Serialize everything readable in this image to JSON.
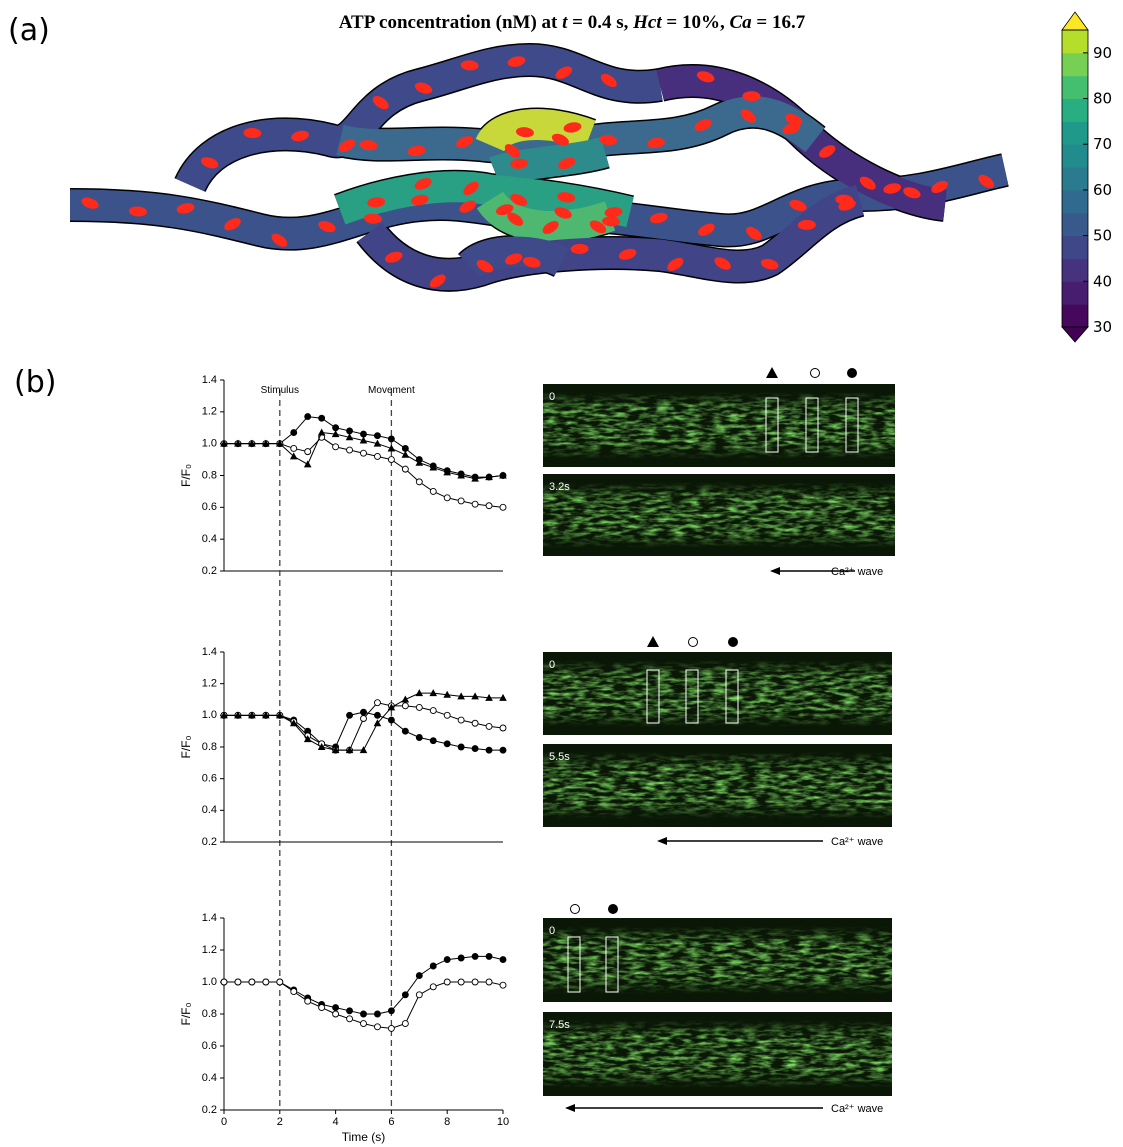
{
  "panel_labels": [
    "(a)",
    "(b)"
  ],
  "heatmap": {
    "title": [
      "ATP concentration (nM) at ",
      "t",
      " = 0.4 s, ",
      "Hct",
      " = 10%, ",
      "Ca",
      " = 16.7"
    ],
    "colorbar": {
      "lim": [
        30,
        95
      ],
      "ticks": [
        30,
        40,
        50,
        60,
        70,
        80,
        90
      ],
      "colors": [
        "#46085c",
        "#471d6f",
        "#46327e",
        "#3f4788",
        "#38598c",
        "#306a8e",
        "#2a7b8e",
        "#228b8d",
        "#1f9a8a",
        "#28ae80",
        "#44bf70",
        "#75d054",
        "#b5de2b"
      ],
      "extend_colors": [
        "#440154",
        "#fde725"
      ]
    }
  },
  "chart_data": [
    {
      "type": "line",
      "y_label": "F/F₀",
      "xlim": [
        0,
        10
      ],
      "ylim": [
        0.2,
        1.4
      ],
      "yticks": [
        0.2,
        0.4,
        0.6,
        0.8,
        {
          "value": 1,
          "label": "1.0"
        },
        1.2,
        1.4
      ],
      "markers": [
        {
          "x": 2,
          "label": "Stimulus"
        },
        {
          "x": 6,
          "label": "Movement"
        }
      ],
      "x": [
        0,
        0.5,
        1,
        1.5,
        2,
        2.5,
        3,
        3.5,
        4,
        4.5,
        5,
        5.5,
        6,
        6.5,
        7,
        7.5,
        8,
        8.5,
        9,
        9.5,
        10
      ],
      "series": [
        {
          "marker": "circle-filled",
          "values": [
            1,
            1,
            1,
            1,
            1,
            1.07,
            1.17,
            1.16,
            1.1,
            1.08,
            1.06,
            1.05,
            1.03,
            0.97,
            0.9,
            0.86,
            0.83,
            0.81,
            0.79,
            0.79,
            0.8
          ]
        },
        {
          "marker": "circle-open",
          "values": [
            1,
            1,
            1,
            1,
            1,
            0.97,
            0.95,
            1.04,
            0.98,
            0.96,
            0.94,
            0.92,
            0.9,
            0.84,
            0.76,
            0.7,
            0.66,
            0.64,
            0.62,
            0.61,
            0.6
          ]
        },
        {
          "marker": "triangle",
          "values": [
            1,
            1,
            1,
            1,
            1,
            0.92,
            0.87,
            1.07,
            1.06,
            1.04,
            1.02,
            1.0,
            0.97,
            0.93,
            0.88,
            0.85,
            0.82,
            0.8,
            0.78,
            0.79,
            0.8
          ]
        }
      ]
    },
    {
      "type": "line",
      "y_label": "F/F₀",
      "xlim": [
        0,
        10
      ],
      "ylim": [
        0.2,
        1.4
      ],
      "yticks": [
        0.2,
        0.4,
        0.6,
        0.8,
        {
          "value": 1,
          "label": "1.0"
        },
        1.2,
        1.4
      ],
      "x": [
        0,
        0.5,
        1,
        1.5,
        2,
        2.5,
        3,
        3.5,
        4,
        4.5,
        5,
        5.5,
        6,
        6.5,
        7,
        7.5,
        8,
        8.5,
        9,
        9.5,
        10
      ],
      "series": [
        {
          "marker": "circle-filled",
          "values": [
            1,
            1,
            1,
            1,
            1,
            0.97,
            0.9,
            0.82,
            0.8,
            1.0,
            1.02,
            1.0,
            0.97,
            0.9,
            0.86,
            0.84,
            0.82,
            0.8,
            0.79,
            0.78,
            0.78
          ]
        },
        {
          "marker": "circle-open",
          "values": [
            1,
            1,
            1,
            1,
            1,
            0.96,
            0.87,
            0.82,
            0.78,
            0.78,
            0.98,
            1.08,
            1.06,
            1.06,
            1.05,
            1.03,
            1.0,
            0.97,
            0.95,
            0.93,
            0.92
          ]
        },
        {
          "marker": "triangle",
          "values": [
            1,
            1,
            1,
            1,
            1,
            0.95,
            0.85,
            0.8,
            0.78,
            0.78,
            0.78,
            0.95,
            1.05,
            1.1,
            1.14,
            1.14,
            1.13,
            1.12,
            1.12,
            1.11,
            1.11
          ]
        }
      ]
    },
    {
      "type": "line",
      "y_label": "F/F₀",
      "x_label": "Time (s)",
      "xlim": [
        0,
        10
      ],
      "ylim": [
        0.2,
        1.4
      ],
      "xticks": [
        0,
        2,
        4,
        6,
        8,
        10
      ],
      "yticks": [
        0.2,
        0.4,
        0.6,
        0.8,
        {
          "value": 1,
          "label": "1.0"
        },
        1.2,
        1.4
      ],
      "x": [
        0,
        0.5,
        1,
        1.5,
        2,
        2.5,
        3,
        3.5,
        4,
        4.5,
        5,
        5.5,
        6,
        6.5,
        7,
        7.5,
        8,
        8.5,
        9,
        9.5,
        10
      ],
      "series": [
        {
          "marker": "circle-filled",
          "values": [
            1,
            1,
            1,
            1,
            1,
            0.95,
            0.9,
            0.86,
            0.84,
            0.82,
            0.8,
            0.8,
            0.82,
            0.92,
            1.04,
            1.1,
            1.14,
            1.15,
            1.16,
            1.16,
            1.14
          ]
        },
        {
          "marker": "circle-open",
          "values": [
            1,
            1,
            1,
            1,
            1,
            0.94,
            0.88,
            0.84,
            0.8,
            0.77,
            0.74,
            0.72,
            0.71,
            0.74,
            0.92,
            0.97,
            1.0,
            1.0,
            1.0,
            1.0,
            0.98
          ]
        }
      ]
    }
  ],
  "image_panels": [
    {
      "frames": [
        "0",
        "3.2s"
      ],
      "caption": "Ca²⁺ wave"
    },
    {
      "frames": [
        "0",
        "5.5s"
      ],
      "caption": "Ca²⁺ wave"
    },
    {
      "frames": [
        "0",
        "7.5s"
      ],
      "caption": "Ca²⁺ wave"
    }
  ]
}
